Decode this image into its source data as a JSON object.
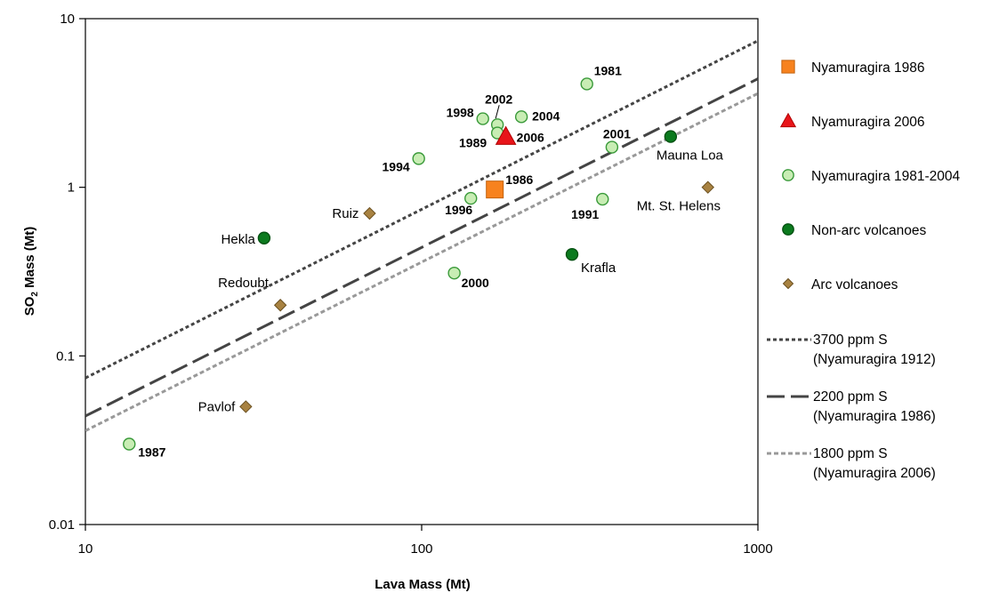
{
  "chart_data": {
    "type": "scatter",
    "title": "",
    "xlabel": "Lava Mass (Mt)",
    "ylabel_main": "SO",
    "ylabel_sub": "2",
    "ylabel_rest": " Mass (Mt)",
    "x_scale": "log",
    "y_scale": "log",
    "xlim": [
      10,
      1000
    ],
    "ylim": [
      0.01,
      10
    ],
    "x_ticks": [
      {
        "v": 10,
        "label": "10"
      },
      {
        "v": 100,
        "label": "100"
      },
      {
        "v": 1000,
        "label": "1000"
      }
    ],
    "y_ticks": [
      {
        "v": 10,
        "label": "10"
      },
      {
        "v": 1,
        "label": "1"
      },
      {
        "v": 0.1,
        "label": "0.1"
      },
      {
        "v": 0.01,
        "label": "0.01"
      }
    ],
    "grid": false,
    "legend_position": "right",
    "series": [
      {
        "name": "Nyamuragira 1986",
        "marker": "square",
        "color": "#F7821E",
        "stroke": "#C2610D",
        "points": [
          {
            "x": 165,
            "y": 0.97,
            "label": "1986",
            "style": "bold",
            "lx": 12,
            "ly": -6,
            "anchor": "start"
          }
        ]
      },
      {
        "name": "Nyamuragira 2006",
        "marker": "triangle",
        "color": "#E8151A",
        "stroke": "#B00000",
        "points": [
          {
            "x": 178,
            "y": 2.0,
            "label": "2006",
            "style": "bold",
            "lx": 12,
            "ly": 6,
            "anchor": "start"
          }
        ]
      },
      {
        "name": "Nyamuragira 1981-2004",
        "marker": "circle",
        "color": "#C8EDB4",
        "stroke": "#3A9A3A",
        "points": [
          {
            "x": 13.5,
            "y": 0.03,
            "label": "1987",
            "style": "bold",
            "lx": 10,
            "ly": 14,
            "anchor": "start"
          },
          {
            "x": 98,
            "y": 1.48,
            "label": "1994",
            "style": "bold",
            "lx": -10,
            "ly": 14,
            "anchor": "end"
          },
          {
            "x": 125,
            "y": 0.31,
            "label": "2000",
            "style": "bold",
            "lx": 8,
            "ly": 16,
            "anchor": "start"
          },
          {
            "x": 140,
            "y": 0.86,
            "label": "1996",
            "style": "bold",
            "lx": 2,
            "ly": 18,
            "anchor": "end"
          },
          {
            "x": 152,
            "y": 2.55,
            "label": "1998",
            "style": "bold",
            "lx": -10,
            "ly": -2,
            "anchor": "end"
          },
          {
            "x": 168,
            "y": 2.35,
            "label": "2002",
            "style": "bold",
            "lx": -14,
            "ly": -24,
            "anchor": "start"
          },
          {
            "x": 168,
            "y": 2.1,
            "label": "1989",
            "style": "bold",
            "lx": -12,
            "ly": 16,
            "anchor": "end"
          },
          {
            "x": 198,
            "y": 2.62,
            "label": "2004",
            "style": "bold",
            "lx": 12,
            "ly": 4,
            "anchor": "start"
          },
          {
            "x": 310,
            "y": 4.1,
            "label": "1981",
            "style": "bold",
            "lx": 8,
            "ly": -10,
            "anchor": "start"
          },
          {
            "x": 345,
            "y": 0.85,
            "label": "1991",
            "style": "bold",
            "lx": -4,
            "ly": 22,
            "anchor": "end"
          },
          {
            "x": 368,
            "y": 1.73,
            "label": "2001",
            "style": "bold",
            "lx": -10,
            "ly": -10,
            "anchor": "start"
          }
        ]
      },
      {
        "name": "Non-arc volcanoes",
        "marker": "circle",
        "color": "#0B7A1E",
        "stroke": "#045212",
        "points": [
          {
            "x": 34,
            "y": 0.5,
            "label": "Hekla",
            "style": "normal",
            "lx": -10,
            "ly": 6,
            "anchor": "end"
          },
          {
            "x": 280,
            "y": 0.4,
            "label": "Krafla",
            "style": "normal",
            "lx": 10,
            "ly": 20,
            "anchor": "start"
          },
          {
            "x": 550,
            "y": 2.0,
            "label": "Mauna Loa",
            "style": "normal",
            "lx": -16,
            "ly": 26,
            "anchor": "start"
          }
        ]
      },
      {
        "name": "Arc volcanoes",
        "marker": "diamond",
        "color": "#A88241",
        "stroke": "#6A4F1F",
        "points": [
          {
            "x": 30,
            "y": 0.05,
            "label": "Pavlof",
            "style": "normal",
            "lx": -12,
            "ly": 5,
            "anchor": "end"
          },
          {
            "x": 38,
            "y": 0.2,
            "label": "Redoubt",
            "style": "normal",
            "lx": -70,
            "ly": -20,
            "anchor": "start"
          },
          {
            "x": 70,
            "y": 0.7,
            "label": "Ruiz",
            "style": "normal",
            "lx": -12,
            "ly": 5,
            "anchor": "end"
          },
          {
            "x": 710,
            "y": 1.0,
            "label": "Mt. St. Helens",
            "style": "normal",
            "lx": -80,
            "ly": 26,
            "anchor": "start"
          }
        ]
      }
    ],
    "lines": [
      {
        "name_1": "3700 ppm S",
        "name_2": "(Nyamuragira 1912)",
        "x": [
          10,
          1000
        ],
        "y": [
          0.074,
          7.4
        ],
        "color": "#444444",
        "dash": "4,3",
        "width": 3
      },
      {
        "name_1": "2200 ppm S",
        "name_2": "(Nyamuragira 1986)",
        "x": [
          10,
          1000
        ],
        "y": [
          0.044,
          4.4
        ],
        "color": "#444444",
        "dash": "20,7",
        "width": 3
      },
      {
        "name_1": "1800 ppm S",
        "name_2": "(Nyamuragira 2006)",
        "x": [
          10,
          1000
        ],
        "y": [
          0.036,
          3.6
        ],
        "color": "#999999",
        "dash": "5,3",
        "width": 3
      }
    ]
  }
}
